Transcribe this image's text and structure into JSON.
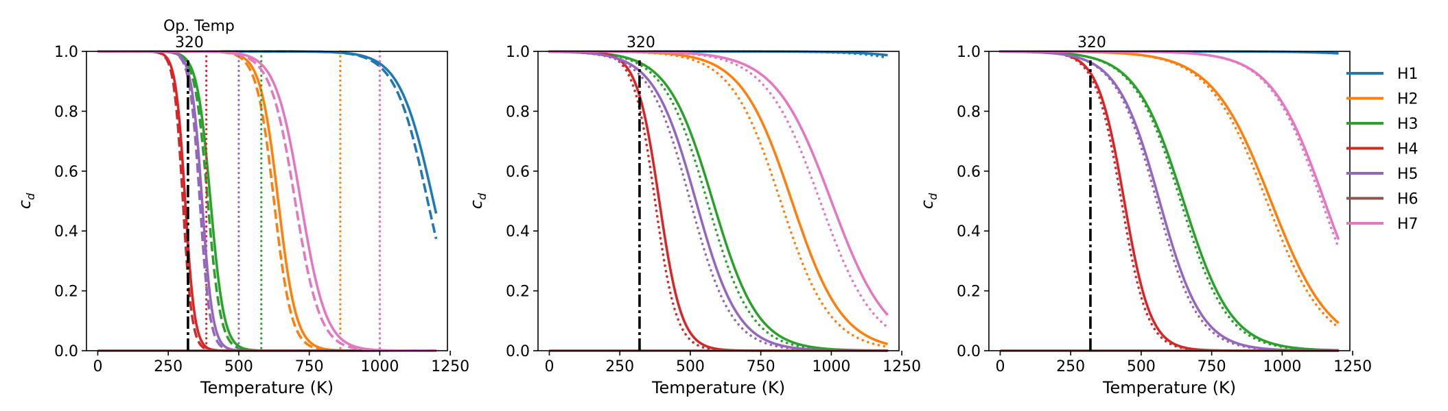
{
  "chart_data": [
    {
      "type": "line",
      "panel": 1,
      "title": "",
      "xlabel": "Temperature (K)",
      "ylabel": "c_d",
      "xlim": [
        -40,
        1240
      ],
      "ylim": [
        0.0,
        1.0
      ],
      "xticks": [
        0,
        250,
        500,
        750,
        1000,
        1250
      ],
      "yticks": [
        0.0,
        0.2,
        0.4,
        0.6,
        0.8,
        1.0
      ],
      "op_temp": {
        "title": "Op. Temp",
        "label": "320",
        "value": 320
      },
      "series": [
        {
          "name": "H1",
          "curves": [
            {
              "style": "solid",
              "center": 1190,
              "width": 60
            },
            {
              "style": "dashed",
              "center": 1170,
              "width": 58
            }
          ],
          "marker_x": 1000
        },
        {
          "name": "H2",
          "curves": [
            {
              "style": "solid",
              "center": 640,
              "width": 32
            },
            {
              "style": "dashed",
              "center": 625,
              "width": 31
            }
          ],
          "marker_x": 860
        },
        {
          "name": "H3",
          "curves": [
            {
              "style": "solid",
              "center": 400,
              "width": 24
            },
            {
              "style": "dashed",
              "center": 390,
              "width": 23
            }
          ],
          "marker_x": 580
        },
        {
          "name": "H4",
          "curves": [
            {
              "style": "solid",
              "center": 310,
              "width": 17
            },
            {
              "style": "dashed",
              "center": 302,
              "width": 16
            }
          ],
          "marker_x": 385
        },
        {
          "name": "H5",
          "curves": [
            {
              "style": "solid",
              "center": 370,
              "width": 19
            },
            {
              "style": "dashed",
              "center": 362,
              "width": 18
            }
          ],
          "marker_x": 500
        },
        {
          "name": "H6",
          "curves": [
            {
              "style": "flat",
              "value": 0.0
            }
          ],
          "marker_x": null
        },
        {
          "name": "H7",
          "curves": [
            {
              "style": "solid",
              "center": 720,
              "width": 45
            },
            {
              "style": "dashed",
              "center": 700,
              "width": 44
            }
          ],
          "marker_x": 1000
        }
      ]
    },
    {
      "type": "line",
      "panel": 2,
      "title": "",
      "xlabel": "Temperature (K)",
      "ylabel": "c_d",
      "xlim": [
        -40,
        1240
      ],
      "ylim": [
        0.0,
        1.0
      ],
      "xticks": [
        0,
        250,
        500,
        750,
        1000,
        1250
      ],
      "yticks": [
        0.0,
        0.2,
        0.4,
        0.6,
        0.8,
        1.0
      ],
      "op_temp": {
        "title": "",
        "label": "320",
        "value": 320
      },
      "series": [
        {
          "name": "H1",
          "curves": [
            {
              "style": "solid",
              "center": 1700,
              "width": 115
            },
            {
              "style": "dotted",
              "center": 1620,
              "width": 110
            }
          ]
        },
        {
          "name": "H2",
          "curves": [
            {
              "style": "solid",
              "center": 860,
              "width": 90
            },
            {
              "style": "dotted",
              "center": 820,
              "width": 88
            }
          ]
        },
        {
          "name": "H3",
          "curves": [
            {
              "style": "solid",
              "center": 580,
              "width": 80
            },
            {
              "style": "dotted",
              "center": 560,
              "width": 78
            }
          ]
        },
        {
          "name": "H4",
          "curves": [
            {
              "style": "solid",
              "center": 390,
              "width": 40
            },
            {
              "style": "dotted",
              "center": 375,
              "width": 38
            }
          ]
        },
        {
          "name": "H5",
          "curves": [
            {
              "style": "solid",
              "center": 520,
              "width": 75
            },
            {
              "style": "dotted",
              "center": 500,
              "width": 73
            }
          ]
        },
        {
          "name": "H6",
          "curves": [
            {
              "style": "flat",
              "value": 0.0
            }
          ]
        },
        {
          "name": "H7",
          "curves": [
            {
              "style": "solid",
              "center": 1000,
              "width": 100
            },
            {
              "style": "dotted",
              "center": 960,
              "width": 97
            }
          ]
        }
      ]
    },
    {
      "type": "line",
      "panel": 3,
      "title": "",
      "xlabel": "Temperature (K)",
      "ylabel": "c_d",
      "xlim": [
        -40,
        1240
      ],
      "ylim": [
        0.0,
        1.0
      ],
      "xticks": [
        0,
        250,
        500,
        750,
        1000,
        1250
      ],
      "yticks": [
        0.0,
        0.2,
        0.4,
        0.6,
        0.8,
        1.0
      ],
      "op_temp": {
        "title": "",
        "label": "320",
        "value": 320
      },
      "series": [
        {
          "name": "H1",
          "curves": [
            {
              "style": "solid",
              "center": 1800,
              "width": 120
            },
            {
              "style": "dotted",
              "center": 1780,
              "width": 118
            }
          ]
        },
        {
          "name": "H2",
          "curves": [
            {
              "style": "solid",
              "center": 960,
              "width": 105
            },
            {
              "style": "dotted",
              "center": 945,
              "width": 103
            }
          ]
        },
        {
          "name": "H3",
          "curves": [
            {
              "style": "solid",
              "center": 650,
              "width": 85
            },
            {
              "style": "dotted",
              "center": 640,
              "width": 83
            }
          ]
        },
        {
          "name": "H4",
          "curves": [
            {
              "style": "solid",
              "center": 440,
              "width": 47
            },
            {
              "style": "dotted",
              "center": 430,
              "width": 46
            }
          ]
        },
        {
          "name": "H5",
          "curves": [
            {
              "style": "solid",
              "center": 565,
              "width": 75
            },
            {
              "style": "dotted",
              "center": 555,
              "width": 73
            }
          ]
        },
        {
          "name": "H6",
          "curves": [
            {
              "style": "flat",
              "value": 0.0
            }
          ]
        },
        {
          "name": "H7",
          "curves": [
            {
              "style": "solid",
              "center": 1150,
              "width": 95
            },
            {
              "style": "dotted",
              "center": 1140,
              "width": 93
            }
          ]
        }
      ]
    }
  ],
  "legend": {
    "placement": "right",
    "entries": [
      {
        "label": "H1",
        "color": "#1f77b4"
      },
      {
        "label": "H2",
        "color": "#ff7f0e"
      },
      {
        "label": "H3",
        "color": "#2ca02c"
      },
      {
        "label": "H4",
        "color": "#d62728"
      },
      {
        "label": "H5",
        "color": "#9467bd"
      },
      {
        "label": "H6",
        "color": "#8c564b"
      },
      {
        "label": "H7",
        "color": "#e377c2"
      }
    ]
  }
}
